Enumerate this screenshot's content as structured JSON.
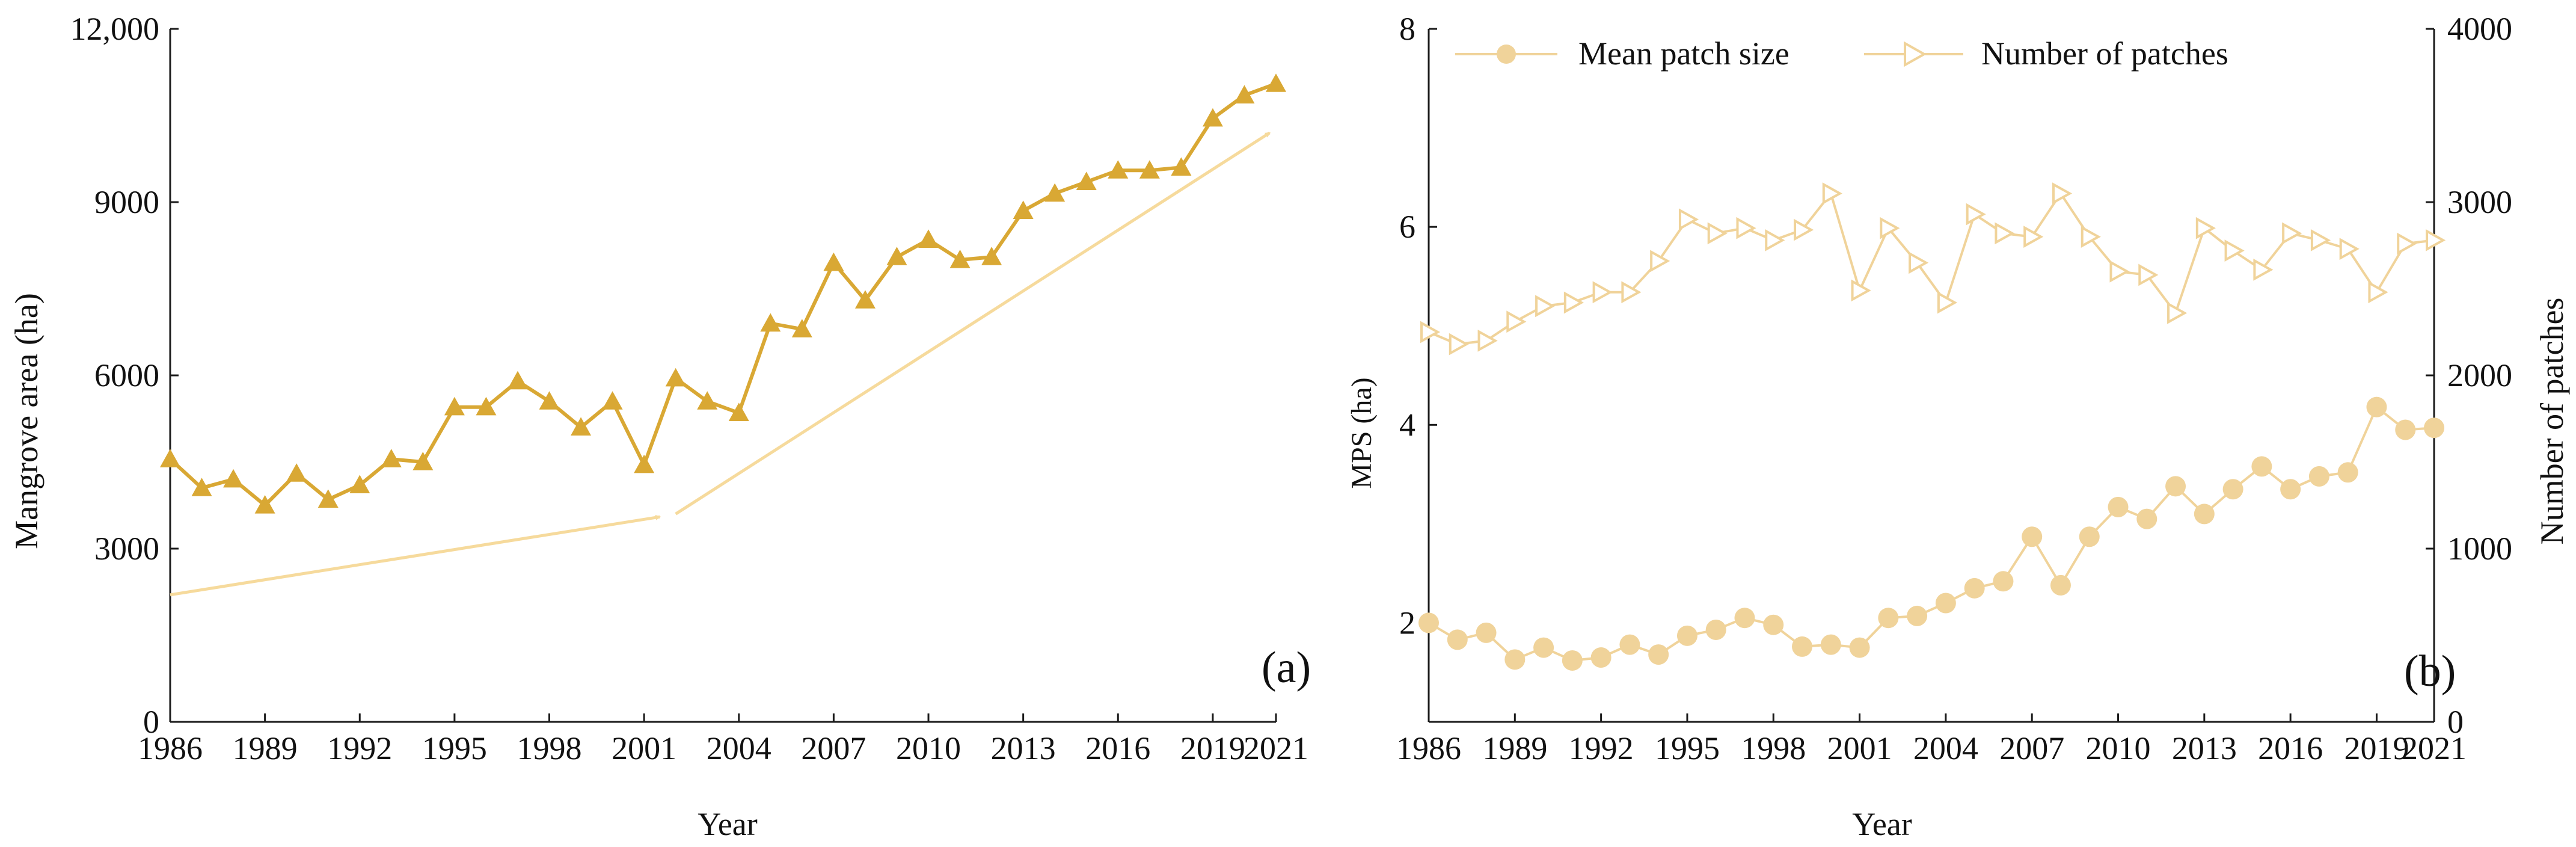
{
  "colors": {
    "area_line": "#D9A834",
    "patch_line": "#F0D39A",
    "trend_arrow": "#F6DA9C",
    "axis": "#1a1a1a"
  },
  "chart_data": [
    {
      "type": "line",
      "panel_label": "(a)",
      "xlabel": "Year",
      "ylabel": "Mangrove area (ha)",
      "xlim": [
        1986,
        2021
      ],
      "ylim": [
        0,
        12000
      ],
      "xticks": [
        1986,
        1989,
        1992,
        1995,
        1998,
        2001,
        2004,
        2007,
        2010,
        2013,
        2016,
        2019,
        2021
      ],
      "xtick_labels": [
        "1986",
        "1989",
        "1992",
        "1995",
        "1998",
        "2001",
        "2004",
        "2007",
        "2010",
        "2013",
        "2016",
        "2019",
        "2021"
      ],
      "yticks": [
        0,
        3000,
        6000,
        9000,
        12000
      ],
      "ytick_labels": [
        "0",
        "3000",
        "6000",
        "9000",
        "12,000"
      ],
      "marker": "triangle-up",
      "series": [
        {
          "x": [
            1986,
            1987,
            1988,
            1989,
            1990,
            1991,
            1992,
            1993,
            1994,
            1995,
            1996,
            1997,
            1998,
            1999,
            2000,
            2001,
            2002,
            2003,
            2004,
            2005,
            2006,
            2007,
            2008,
            2009,
            2010,
            2011,
            2012,
            2013,
            2014,
            2015,
            2016,
            2017,
            2018,
            2019,
            2020,
            2021
          ],
          "values": [
            4550,
            4050,
            4200,
            3750,
            4300,
            3850,
            4100,
            4550,
            4500,
            5450,
            5450,
            5900,
            5550,
            5100,
            5550,
            4450,
            5950,
            5550,
            5350,
            6900,
            6800,
            7950,
            7300,
            8050,
            8350,
            8000,
            8050,
            8850,
            9150,
            9350,
            9550,
            9550,
            9600,
            10450,
            10850,
            11050
          ]
        }
      ],
      "trend_arrows": [
        {
          "from": [
            1986,
            2200
          ],
          "to": [
            2001.5,
            3550
          ]
        },
        {
          "from": [
            2002,
            3600
          ],
          "to": [
            2020.8,
            10200
          ]
        }
      ]
    },
    {
      "type": "line",
      "panel_label": "(b)",
      "xlabel": "Year",
      "ylabel": "MPS (ha)",
      "y2label": "Number of patches",
      "xlim": [
        1986,
        2021
      ],
      "ylim": [
        1,
        8
      ],
      "y2lim": [
        0,
        4000
      ],
      "xticks": [
        1986,
        1989,
        1992,
        1995,
        1998,
        2001,
        2004,
        2007,
        2010,
        2013,
        2016,
        2019,
        2021
      ],
      "xtick_labels": [
        "1986",
        "1989",
        "1992",
        "1995",
        "1998",
        "2001",
        "2004",
        "2007",
        "2010",
        "2013",
        "2016",
        "2019",
        "2021"
      ],
      "yticks": [
        2,
        4,
        6,
        8
      ],
      "ytick_labels": [
        "2",
        "4",
        "6",
        "8"
      ],
      "y2ticks": [
        0,
        1000,
        2000,
        3000,
        4000
      ],
      "y2tick_labels": [
        "0",
        "1000",
        "2000",
        "3000",
        "4000"
      ],
      "legend_position": "top",
      "series": [
        {
          "name": "Mean patch size",
          "axis": "left",
          "marker": "circle",
          "x": [
            1986,
            1987,
            1988,
            1989,
            1990,
            1991,
            1992,
            1993,
            1994,
            1995,
            1996,
            1997,
            1998,
            1999,
            2000,
            2001,
            2002,
            2003,
            2004,
            2005,
            2006,
            2007,
            2008,
            2009,
            2010,
            2011,
            2012,
            2013,
            2014,
            2015,
            2016,
            2017,
            2018,
            2019,
            2020,
            2021
          ],
          "values": [
            2.0,
            1.83,
            1.9,
            1.63,
            1.75,
            1.62,
            1.65,
            1.78,
            1.68,
            1.87,
            1.93,
            2.05,
            1.98,
            1.76,
            1.78,
            1.75,
            2.05,
            2.07,
            2.2,
            2.35,
            2.42,
            2.87,
            2.38,
            2.87,
            3.17,
            3.05,
            3.38,
            3.1,
            3.35,
            3.58,
            3.35,
            3.48,
            3.52,
            4.18,
            3.95,
            3.97
          ]
        },
        {
          "name": "Number of patches",
          "axis": "right",
          "marker": "triangle-right",
          "x": [
            1986,
            1987,
            1988,
            1989,
            1990,
            1991,
            1992,
            1993,
            1994,
            1995,
            1996,
            1997,
            1998,
            1999,
            2000,
            2001,
            2002,
            2003,
            2004,
            2005,
            2006,
            2007,
            2008,
            2009,
            2010,
            2011,
            2012,
            2013,
            2014,
            2015,
            2016,
            2017,
            2018,
            2019,
            2020,
            2021
          ],
          "values": [
            2250,
            2180,
            2200,
            2310,
            2400,
            2420,
            2480,
            2480,
            2660,
            2900,
            2820,
            2850,
            2780,
            2840,
            3050,
            2490,
            2850,
            2650,
            2420,
            2930,
            2820,
            2800,
            3050,
            2800,
            2600,
            2580,
            2360,
            2850,
            2720,
            2610,
            2820,
            2780,
            2730,
            2480,
            2760,
            2780
          ]
        }
      ]
    }
  ]
}
